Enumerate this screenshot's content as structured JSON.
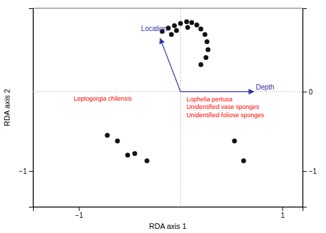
{
  "chart_data": {
    "type": "scatter",
    "xlabel": "RDA axis 1",
    "ylabel": "RDA axis 2",
    "xlim": [
      -1.45,
      1.2
    ],
    "ylim": [
      -1.45,
      1.05
    ],
    "xticks": [
      {
        "value": -1,
        "label": "−1"
      },
      1
    ],
    "yticks": [
      {
        "value": -1,
        "label": "−1"
      }
    ],
    "y2lim": [
      -1.45,
      1.05
    ],
    "y2ticks": [
      0,
      {
        "value": -1,
        "label": "−1"
      }
    ],
    "series": [
      {
        "color": "#111111",
        "x": [
          -0.18,
          -0.12,
          -0.06,
          0.0,
          0.06,
          0.11,
          0.16,
          0.2,
          0.24,
          0.26,
          0.27,
          0.25,
          0.2,
          -0.09,
          -0.04,
          0.07
        ],
        "values": [
          0.76,
          0.8,
          0.83,
          0.86,
          0.88,
          0.87,
          0.84,
          0.79,
          0.72,
          0.63,
          0.53,
          0.43,
          0.34,
          0.72,
          0.77,
          0.81
        ]
      },
      {
        "color": "#111111",
        "x": [
          -0.72,
          -0.62,
          -0.52,
          -0.45,
          -0.33,
          0.53,
          0.62
        ],
        "values": [
          -0.55,
          -0.62,
          -0.8,
          -0.78,
          -0.87,
          -0.62,
          -0.87
        ]
      }
    ],
    "reference_lines": [
      {
        "axis": "y",
        "value": 0,
        "color": "#9999bb"
      },
      {
        "axis": "x",
        "value": 0,
        "color": "#9999bb"
      }
    ],
    "arrows": [
      {
        "x0": 0.0,
        "y0": 0.0,
        "x1": -0.2,
        "y1": 0.67,
        "color": "#3333aa",
        "label": {
          "text": "Location",
          "x": -0.26,
          "y": 0.76
        }
      },
      {
        "x0": 0.0,
        "y0": 0.0,
        "x1": 0.72,
        "y1": 0.0,
        "color": "#3333aa",
        "label": {
          "text": "Depth",
          "x": 0.74,
          "y": 0.048
        }
      }
    ],
    "annotations": [
      {
        "text": "Leptogorgia chilensis",
        "x": -1.05,
        "y": -0.09,
        "color": "red"
      },
      {
        "text": "Lophelia pertusa",
        "x": 0.06,
        "y": -0.1,
        "color": "red"
      },
      {
        "text": "Unidentified vase sponges",
        "x": 0.06,
        "y": -0.2,
        "color": "red"
      },
      {
        "text": "Unidentified foliose sponges",
        "x": 0.06,
        "y": -0.3,
        "color": "red"
      }
    ]
  }
}
